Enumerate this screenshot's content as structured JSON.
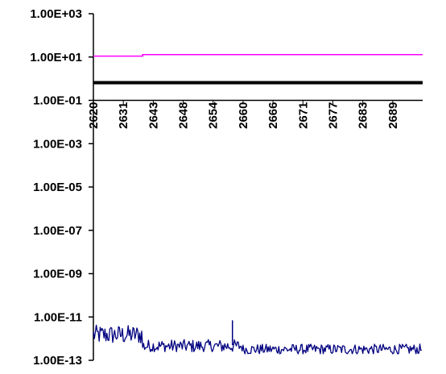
{
  "chart_data": {
    "type": "line",
    "title": "",
    "xlabel": "",
    "ylabel": "",
    "y_scale": "log",
    "ylim": [
      1e-13,
      1000
    ],
    "y_ticks": [
      "1.00E+03",
      "1.00E+01",
      "1.00E-01",
      "1.00E-03",
      "1.00E-05",
      "1.00E-07",
      "1.00E-09",
      "1.00E-11",
      "1.00E-13"
    ],
    "y_tick_values": [
      1000,
      10,
      0.1,
      0.001,
      1e-05,
      1e-07,
      1e-09,
      1e-11,
      1e-13
    ],
    "categories": [
      "2620",
      "2631",
      "2643",
      "2648",
      "2654",
      "2660",
      "2666",
      "2671",
      "2677",
      "2683",
      "2689"
    ],
    "x_axis_crosses_at": 0.1,
    "grid": false,
    "legend": "none",
    "series": [
      {
        "color": "#ff00ff",
        "description_points": [
          {
            "x": "2620",
            "y": 11
          },
          {
            "x": "2631",
            "y": 11
          },
          {
            "x": "2631",
            "y": 13
          },
          {
            "x": "2689",
            "y": 13
          }
        ]
      },
      {
        "color": "#000000",
        "constant": 0.65,
        "band_low": 0.55,
        "band_high": 0.78
      },
      {
        "color": "#000080",
        "segments": [
          {
            "from": "2620",
            "to": "2631",
            "y": 1.5e-12,
            "low": 5e-13,
            "high": 5e-12
          },
          {
            "from": "2631",
            "to": "2660",
            "y": 4.5e-13,
            "low": 2.5e-13,
            "high": 1.2e-12
          },
          {
            "from": "2660",
            "to": "2689",
            "y": 3.2e-13,
            "low": 2e-13,
            "high": 7e-13
          }
        ],
        "spike": {
          "x": "2654",
          "y": 7e-12
        }
      }
    ]
  }
}
